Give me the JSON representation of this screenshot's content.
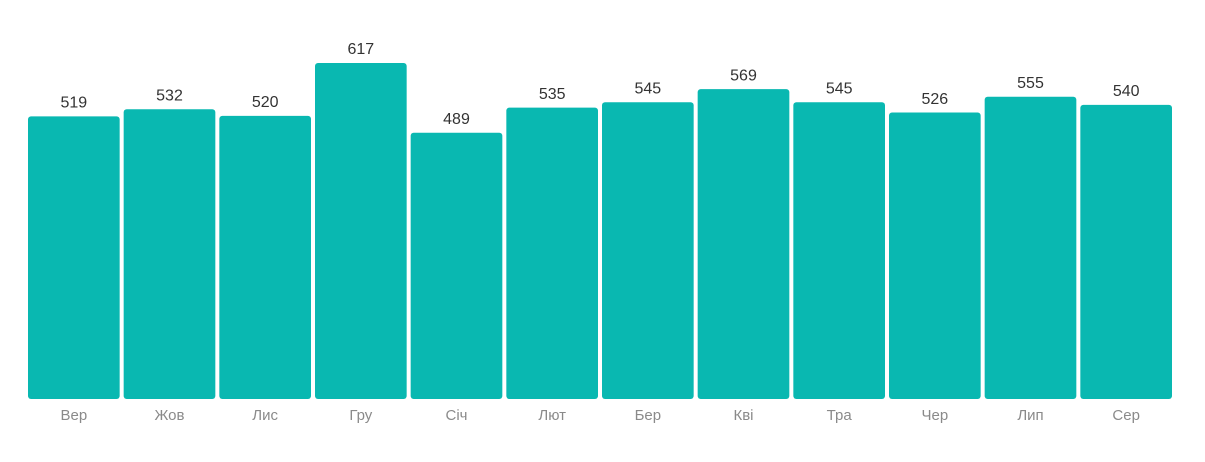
{
  "chart_data": {
    "type": "bar",
    "categories": [
      "Вер",
      "Жов",
      "Лис",
      "Гру",
      "Січ",
      "Лют",
      "Бер",
      "Кві",
      "Тра",
      "Чер",
      "Лип",
      "Сер"
    ],
    "values": [
      519,
      532,
      520,
      617,
      489,
      535,
      545,
      569,
      545,
      526,
      555,
      540
    ],
    "color": "#09b8b1"
  }
}
